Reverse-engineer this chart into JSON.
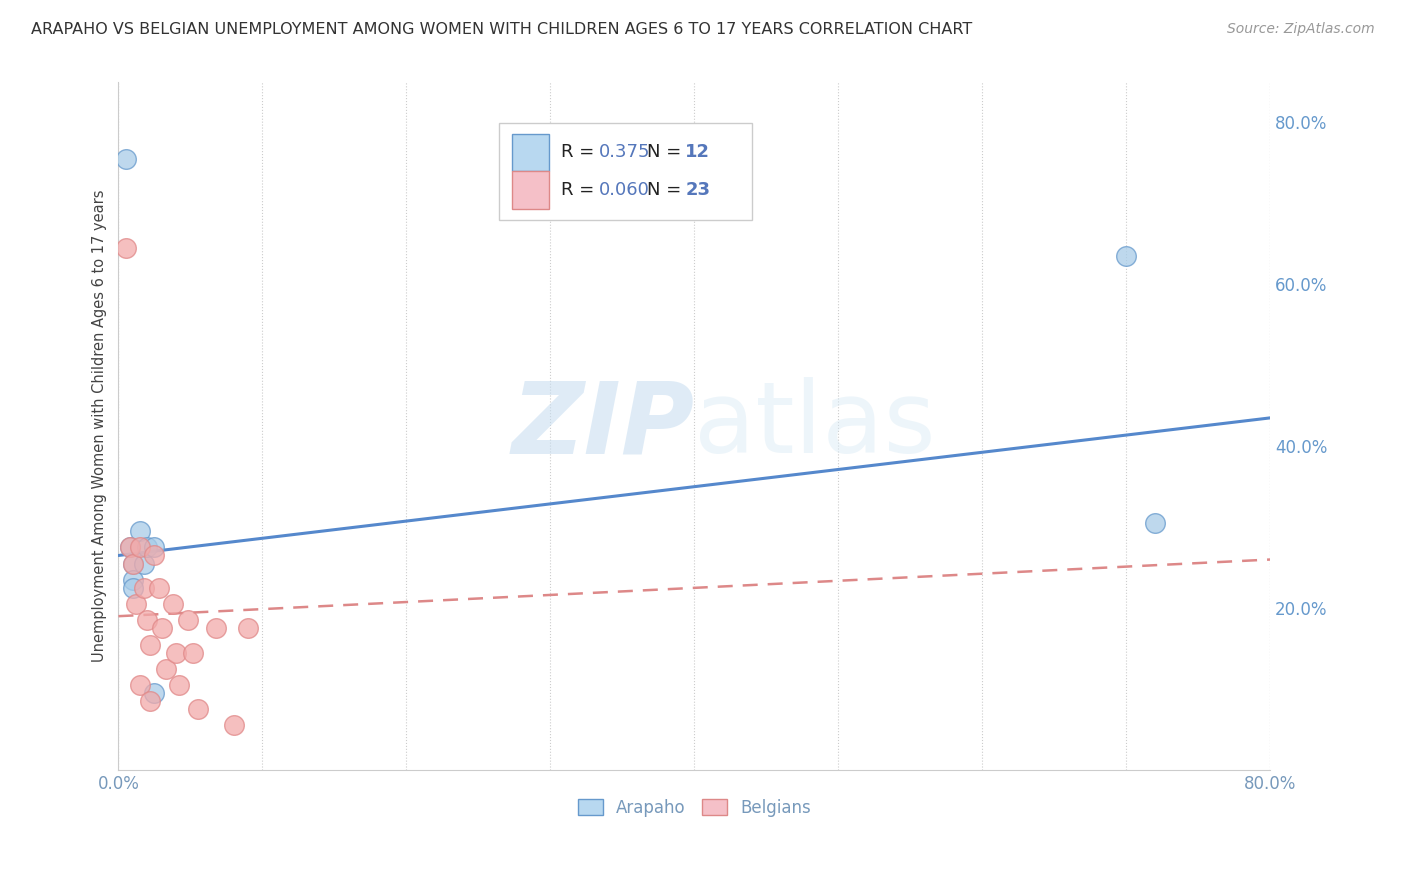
{
  "title": "ARAPAHO VS BELGIAN UNEMPLOYMENT AMONG WOMEN WITH CHILDREN AGES 6 TO 17 YEARS CORRELATION CHART",
  "source": "Source: ZipAtlas.com",
  "ylabel": "Unemployment Among Women with Children Ages 6 to 17 years",
  "watermark_zip": "ZIP",
  "watermark_atlas": "atlas",
  "arapaho_R": 0.375,
  "arapaho_N": 12,
  "belgian_R": 0.06,
  "belgian_N": 23,
  "arapaho_scatter_x": [
    0.005,
    0.008,
    0.01,
    0.01,
    0.01,
    0.015,
    0.018,
    0.02,
    0.025,
    0.7,
    0.72,
    0.025
  ],
  "arapaho_scatter_y": [
    0.755,
    0.275,
    0.255,
    0.235,
    0.225,
    0.295,
    0.255,
    0.275,
    0.275,
    0.635,
    0.305,
    0.095
  ],
  "belgian_scatter_x": [
    0.005,
    0.008,
    0.01,
    0.012,
    0.015,
    0.015,
    0.018,
    0.02,
    0.022,
    0.022,
    0.025,
    0.028,
    0.03,
    0.033,
    0.038,
    0.04,
    0.042,
    0.048,
    0.052,
    0.055,
    0.068,
    0.08,
    0.09
  ],
  "belgian_scatter_y": [
    0.645,
    0.275,
    0.255,
    0.205,
    0.105,
    0.275,
    0.225,
    0.185,
    0.155,
    0.085,
    0.265,
    0.225,
    0.175,
    0.125,
    0.205,
    0.145,
    0.105,
    0.185,
    0.145,
    0.075,
    0.175,
    0.055,
    0.175
  ],
  "arapaho_trend_x": [
    0.0,
    0.8
  ],
  "arapaho_trend_y": [
    0.265,
    0.435
  ],
  "belgian_trend_x": [
    0.0,
    0.8
  ],
  "belgian_trend_y": [
    0.19,
    0.26
  ],
  "arapaho_color": "#A8CCE8",
  "belgian_color": "#F2AAAA",
  "arapaho_edge_color": "#6699CC",
  "belgian_edge_color": "#E08888",
  "arapaho_line_color": "#5588CC",
  "belgian_line_color": "#DD8888",
  "right_axis_color": "#6699CC",
  "label_color": "#444444",
  "title_color": "#333333",
  "grid_color": "#CCCCCC",
  "legend_arapaho_fill": "#B8D8F0",
  "legend_arapaho_edge": "#6699CC",
  "legend_belgian_fill": "#F5C0C8",
  "legend_belgian_edge": "#DD8888",
  "xlim": [
    0.0,
    0.8
  ],
  "ylim": [
    0.0,
    0.85
  ],
  "xtick_left": 0.0,
  "xtick_right": 0.8,
  "yticks_right": [
    0.2,
    0.4,
    0.6,
    0.8
  ],
  "background_color": "#FFFFFF",
  "legend_R_label_color": "#222222",
  "legend_value_color": "#5577BB",
  "bottom_label_color": "#7799BB",
  "source_color": "#999999"
}
